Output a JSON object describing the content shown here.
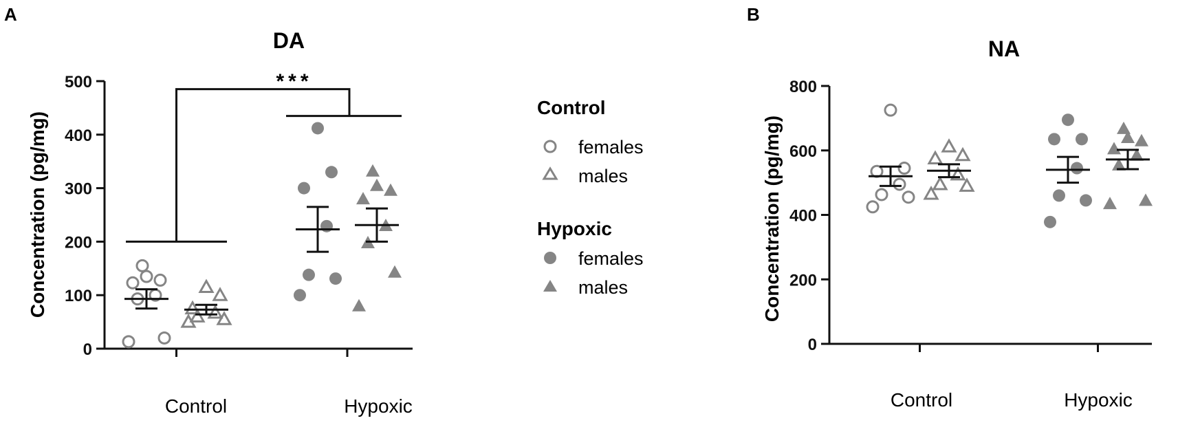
{
  "panels": {
    "a": {
      "letter": "A"
    },
    "b": {
      "letter": "B"
    }
  },
  "legend": {
    "control_heading": "Control",
    "hypoxic_heading": "Hypoxic",
    "females_label": "females",
    "males_label": "males"
  },
  "colors": {
    "marker": "#858585",
    "error_bar": "#111111",
    "axis": "#111111",
    "text": "#111111"
  },
  "chart_data": [
    {
      "panel": "A",
      "type": "scatter",
      "title": "DA",
      "ylabel": "Concentration (pg/mg)",
      "xlabel": "",
      "ylim": [
        0,
        500
      ],
      "yticks": [
        0,
        100,
        200,
        300,
        400,
        500
      ],
      "categories": [
        "Control",
        "Hypoxic"
      ],
      "significance": "***",
      "series": [
        {
          "name": "females",
          "group": "Control",
          "marker": "open-circle",
          "values": [
            13,
            20,
            93,
            100,
            123,
            128,
            135,
            155
          ],
          "mean": 93,
          "sem": 18
        },
        {
          "name": "males",
          "group": "Control",
          "marker": "open-triangle",
          "values": [
            50,
            55,
            60,
            67,
            75,
            100,
            115
          ],
          "mean": 73,
          "sem": 9
        },
        {
          "name": "females",
          "group": "Hypoxic",
          "marker": "filled-circle",
          "values": [
            100,
            131,
            138,
            229,
            300,
            330,
            412
          ],
          "mean": 223,
          "sem": 42
        },
        {
          "name": "males",
          "group": "Hypoxic",
          "marker": "filled-triangle",
          "values": [
            80,
            143,
            198,
            230,
            280,
            296,
            305,
            332
          ],
          "mean": 231,
          "sem": 31
        }
      ]
    },
    {
      "panel": "B",
      "type": "scatter",
      "title": "NA",
      "ylabel": "Concentration (pg/mg)",
      "xlabel": "",
      "ylim": [
        0,
        800
      ],
      "yticks": [
        0,
        200,
        400,
        600,
        800
      ],
      "categories": [
        "Control",
        "Hypoxic"
      ],
      "series": [
        {
          "name": "females",
          "group": "Control",
          "marker": "open-circle",
          "values": [
            425,
            455,
            463,
            495,
            535,
            545,
            725
          ],
          "mean": 520,
          "sem": 30
        },
        {
          "name": "males",
          "group": "Control",
          "marker": "open-triangle",
          "values": [
            465,
            490,
            495,
            525,
            575,
            585,
            612
          ],
          "mean": 537,
          "sem": 20
        },
        {
          "name": "females",
          "group": "Hypoxic",
          "marker": "filled-circle",
          "values": [
            378,
            445,
            460,
            545,
            635,
            635,
            695
          ],
          "mean": 540,
          "sem": 40
        },
        {
          "name": "males",
          "group": "Hypoxic",
          "marker": "filled-triangle",
          "values": [
            435,
            445,
            555,
            585,
            605,
            630,
            640,
            668
          ],
          "mean": 572,
          "sem": 30
        }
      ]
    }
  ]
}
